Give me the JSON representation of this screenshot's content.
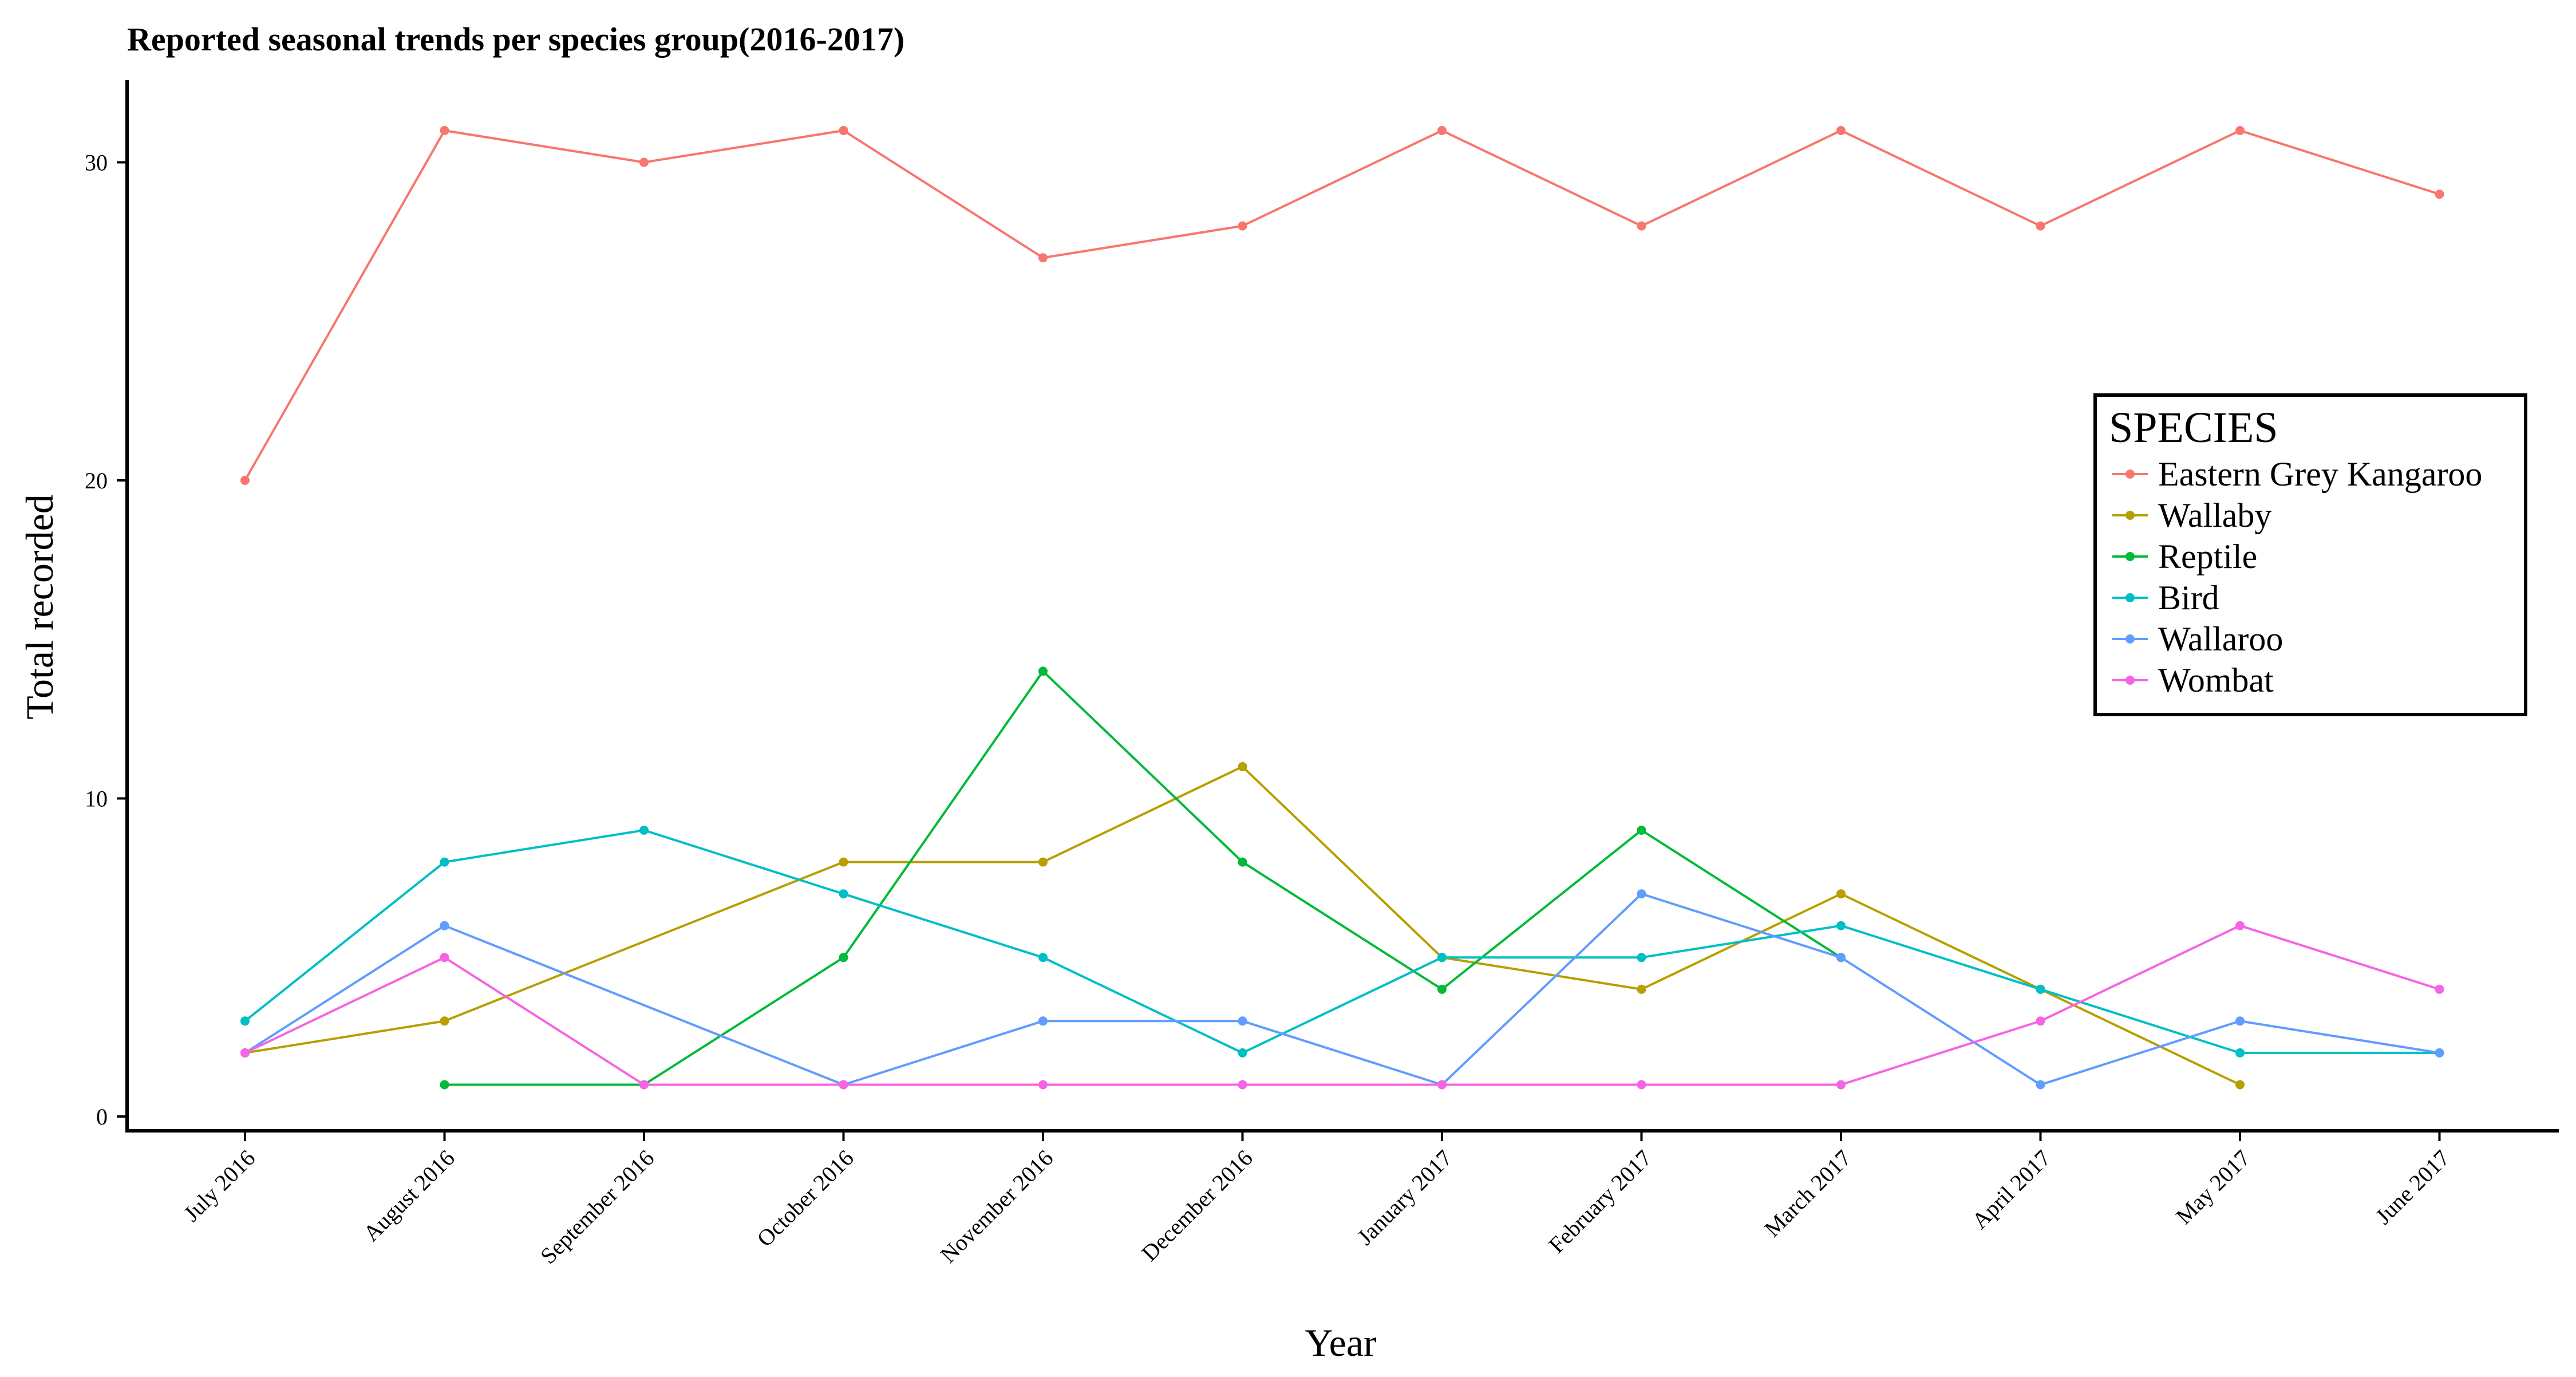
{
  "chart_data": {
    "type": "line",
    "title": "Reported seasonal trends per species group(2016-2017)",
    "xlabel": "Year",
    "ylabel": "Total recorded",
    "ylim": [
      0,
      32
    ],
    "yticks": [
      0,
      10,
      20,
      30
    ],
    "grid": false,
    "legend_position": "right",
    "legend_title": "SPECIES",
    "categories": [
      "July 2016",
      "August 2016",
      "September 2016",
      "October 2016",
      "November 2016",
      "December 2016",
      "January 2017",
      "February 2017",
      "March 2017",
      "April 2017",
      "May 2017",
      "June 2017"
    ],
    "series": [
      {
        "name": "Eastern Grey Kangaroo",
        "color": "#F8766D",
        "values": [
          20,
          31,
          30,
          31,
          27,
          28,
          31,
          28,
          31,
          28,
          31,
          29
        ]
      },
      {
        "name": "Wallaby",
        "color": "#B79F00",
        "values": [
          2,
          3,
          null,
          8,
          8,
          11,
          5,
          4,
          7,
          4,
          1,
          null
        ]
      },
      {
        "name": "Reptile",
        "color": "#00BA38",
        "values": [
          null,
          1,
          1,
          5,
          14,
          8,
          4,
          9,
          5,
          null,
          null,
          null
        ]
      },
      {
        "name": "Bird",
        "color": "#00BFC4",
        "values": [
          3,
          8,
          9,
          7,
          5,
          2,
          5,
          5,
          6,
          4,
          2,
          2
        ]
      },
      {
        "name": "Wallaroo",
        "color": "#619CFF",
        "values": [
          2,
          6,
          null,
          1,
          3,
          3,
          1,
          7,
          5,
          1,
          3,
          2
        ]
      },
      {
        "name": "Wombat",
        "color": "#F564E3",
        "values": [
          2,
          5,
          1,
          1,
          1,
          1,
          1,
          1,
          1,
          3,
          6,
          4
        ]
      }
    ]
  }
}
